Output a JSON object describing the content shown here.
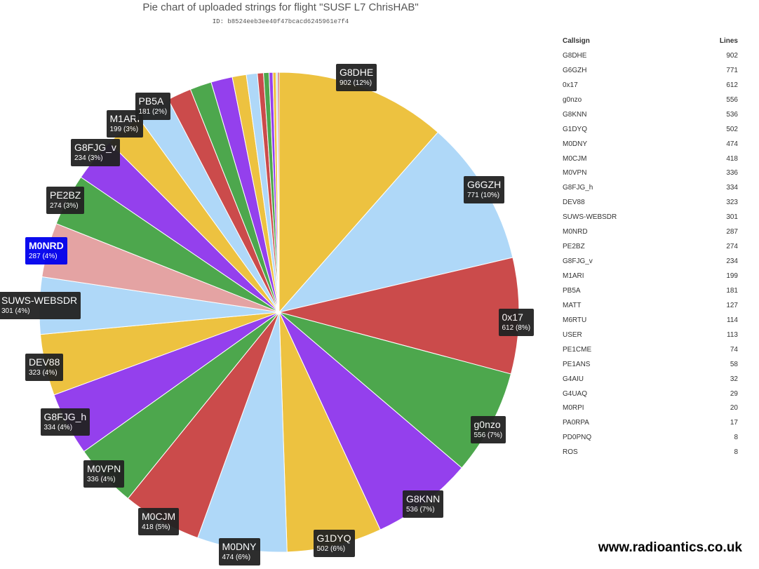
{
  "title": "Pie chart of uploaded strings for flight \"SUSF L7 ChrisHAB\"",
  "subtitle": "ID: b8524eeb3ee40f47bcacd6245961e7f4",
  "watermark": "www.radioantics.co.uk",
  "table": {
    "col_callsign": "Callsign",
    "col_lines": "Lines"
  },
  "chart_data": {
    "type": "pie",
    "title": "Pie chart of uploaded strings for flight \"SUSF L7 ChrisHAB\"",
    "start": "top, clockwise",
    "slice_colors": [
      "#edc240",
      "#afd8f8",
      "#cb4b4b",
      "#4da74d",
      "#9440ed"
    ],
    "highlight": {
      "slice": "M0NRD",
      "slice_color": "#e4a3a3",
      "label_color": "#0000ee"
    },
    "slices": [
      {
        "label": "G8DHE",
        "value": 902,
        "pct": "12%"
      },
      {
        "label": "G6GZH",
        "value": 771,
        "pct": "10%"
      },
      {
        "label": "0x17",
        "value": 612,
        "pct": "8%"
      },
      {
        "label": "g0nzo",
        "value": 556,
        "pct": "7%"
      },
      {
        "label": "G8KNN",
        "value": 536,
        "pct": "7%"
      },
      {
        "label": "G1DYQ",
        "value": 502,
        "pct": "6%"
      },
      {
        "label": "M0DNY",
        "value": 474,
        "pct": "6%"
      },
      {
        "label": "M0CJM",
        "value": 418,
        "pct": "5%"
      },
      {
        "label": "M0VPN",
        "value": 336,
        "pct": "4%"
      },
      {
        "label": "G8FJG_h",
        "value": 334,
        "pct": "4%"
      },
      {
        "label": "DEV88",
        "value": 323,
        "pct": "4%"
      },
      {
        "label": "SUWS-WEBSDR",
        "value": 301,
        "pct": "4%"
      },
      {
        "label": "M0NRD",
        "value": 287,
        "pct": "4%"
      },
      {
        "label": "PE2BZ",
        "value": 274,
        "pct": "3%"
      },
      {
        "label": "G8FJG_v",
        "value": 234,
        "pct": "3%"
      },
      {
        "label": "M1ARI",
        "value": 199,
        "pct": "3%"
      },
      {
        "label": "PB5A",
        "value": 181,
        "pct": "2%"
      },
      {
        "label": "MATT",
        "value": 127
      },
      {
        "label": "M6RTU",
        "value": 114
      },
      {
        "label": "USER",
        "value": 113
      },
      {
        "label": "PE1CME",
        "value": 74
      },
      {
        "label": "PE1ANS",
        "value": 58
      },
      {
        "label": "G4AIU",
        "value": 32
      },
      {
        "label": "G4UAQ",
        "value": 29
      },
      {
        "label": "M0RPI",
        "value": 20
      },
      {
        "label": "PA0RPA",
        "value": 17
      },
      {
        "label": "PD0PNQ",
        "value": 8
      },
      {
        "label": "ROS",
        "value": 8
      }
    ]
  }
}
